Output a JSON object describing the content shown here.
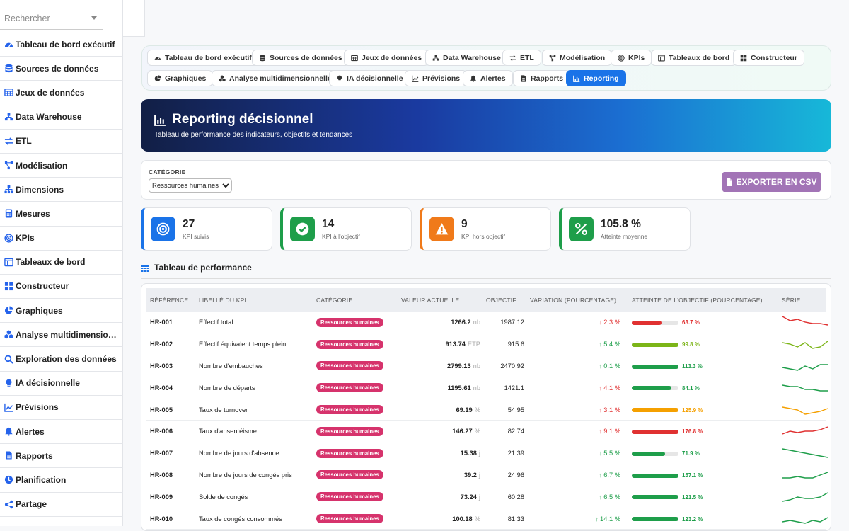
{
  "sidebar": {
    "search_placeholder": "Rechercher",
    "items": [
      {
        "label": "Tableau de bord exécutif",
        "icon": "gauge-icon"
      },
      {
        "label": "Sources de données",
        "icon": "database-icon"
      },
      {
        "label": "Jeux de données",
        "icon": "table-icon"
      },
      {
        "label": "Data Warehouse",
        "icon": "warehouse-icon"
      },
      {
        "label": "ETL",
        "icon": "exchange-icon"
      },
      {
        "label": "Modélisation",
        "icon": "model-icon"
      },
      {
        "label": "Dimensions",
        "icon": "sitemap-icon"
      },
      {
        "label": "Mesures",
        "icon": "calculator-icon"
      },
      {
        "label": "KPIs",
        "icon": "target-icon"
      },
      {
        "label": "Tableaux de bord",
        "icon": "panel-icon"
      },
      {
        "label": "Constructeur",
        "icon": "grid-icon"
      },
      {
        "label": "Graphiques",
        "icon": "pie-icon"
      },
      {
        "label": "Analyse multidimensionnelle",
        "icon": "cubes-icon"
      },
      {
        "label": "Exploration des données",
        "icon": "search-icon"
      },
      {
        "label": "IA décisionnelle",
        "icon": "bulb-icon"
      },
      {
        "label": "Prévisions",
        "icon": "line-chart-icon"
      },
      {
        "label": "Alertes",
        "icon": "bell-icon"
      },
      {
        "label": "Rapports",
        "icon": "file-icon"
      },
      {
        "label": "Planification",
        "icon": "clock-icon"
      },
      {
        "label": "Partage",
        "icon": "share-icon"
      }
    ]
  },
  "tabs": [
    {
      "label": "Tableau de bord exécutif",
      "icon": "gauge-icon"
    },
    {
      "label": "Sources de données",
      "icon": "database-icon"
    },
    {
      "label": "Jeux de données",
      "icon": "table-icon"
    },
    {
      "label": "Data Warehouse",
      "icon": "warehouse-icon"
    },
    {
      "label": "ETL",
      "icon": "exchange-icon"
    },
    {
      "label": "Modélisation",
      "icon": "model-icon"
    },
    {
      "label": "KPIs",
      "icon": "target-icon"
    },
    {
      "label": "Tableaux de bord",
      "icon": "panel-icon"
    },
    {
      "label": "Constructeur",
      "icon": "grid-icon"
    },
    {
      "label": "Graphiques",
      "icon": "pie-icon"
    },
    {
      "label": "Analyse multidimensionnelle",
      "icon": "cubes-icon"
    },
    {
      "label": "IA décisionnelle",
      "icon": "bulb-icon"
    },
    {
      "label": "Prévisions",
      "icon": "line-chart-icon"
    },
    {
      "label": "Alertes",
      "icon": "bell-icon"
    },
    {
      "label": "Rapports",
      "icon": "file-icon"
    },
    {
      "label": "Reporting",
      "icon": "bar-chart-icon",
      "active": true
    }
  ],
  "header": {
    "title": "Reporting décisionnel",
    "subtitle": "Tableau de performance des indicateurs, objectifs et tendances"
  },
  "filter": {
    "label": "CATÉGORIE",
    "selected": "Ressources humaines",
    "export_label": "EXPORTER EN CSV"
  },
  "stats": [
    {
      "value": "27",
      "label": "KPI suivis",
      "color": "#1a73e8",
      "icon": "target-icon"
    },
    {
      "value": "14",
      "label": "KPI à l'objectif",
      "color": "#1e9e4a",
      "icon": "check-circle-icon"
    },
    {
      "value": "9",
      "label": "KPI hors objectif",
      "color": "#f07a1a",
      "icon": "warning-icon"
    },
    {
      "value": "105.8 %",
      "label": "Atteinte moyenne",
      "color": "#1e9e4a",
      "icon": "percent-icon"
    }
  ],
  "table": {
    "title": "Tableau de performance",
    "headers": [
      "RÉFÉRENCE",
      "LIBELLÉ DU KPI",
      "CATÉGORIE",
      "VALEUR ACTUELLE",
      "OBJECTIF",
      "VARIATION (POURCENTAGE)",
      "ATTEINTE DE L'OBJECTIF (POURCENTAGE)",
      "SÉRIE"
    ],
    "rows": [
      {
        "ref": "HR-001",
        "label": "Effectif total",
        "category": "Ressources humaines",
        "value": "1266.2",
        "unit": "nb",
        "target": "1987.12",
        "dir": "down",
        "variation": "2.3 %",
        "var_color": "#e03131",
        "attain": 63.7,
        "attain_text": "63.7 %",
        "attain_color": "#e03131",
        "spark": [
          9,
          6,
          7,
          5,
          4,
          4,
          3
        ],
        "spark_color": "#e03131"
      },
      {
        "ref": "HR-002",
        "label": "Effectif équivalent temps plein",
        "category": "Ressources humaines",
        "value": "913.74",
        "unit": "ETP",
        "target": "915.6",
        "dir": "up",
        "variation": "5.4 %",
        "var_color": "#1e9e4a",
        "attain": 99.8,
        "attain_text": "99.8 %",
        "attain_color": "#7cb518",
        "spark": [
          6,
          5,
          3,
          6,
          2,
          3,
          7
        ],
        "spark_color": "#7cb518"
      },
      {
        "ref": "HR-003",
        "label": "Nombre d'embauches",
        "category": "Ressources humaines",
        "value": "2799.13",
        "unit": "nb",
        "target": "2470.92",
        "dir": "up",
        "variation": "0.1 %",
        "var_color": "#1e9e4a",
        "attain": 113.3,
        "attain_text": "113.3 %",
        "attain_color": "#1e9e4a",
        "spark": [
          4,
          3,
          2,
          5,
          3,
          6,
          6
        ],
        "spark_color": "#1e9e4a"
      },
      {
        "ref": "HR-004",
        "label": "Nombre de départs",
        "category": "Ressources humaines",
        "value": "1195.61",
        "unit": "nb",
        "target": "1421.1",
        "dir": "up",
        "variation": "4.1 %",
        "var_color": "#e03131",
        "attain": 84.1,
        "attain_text": "84.1 %",
        "attain_color": "#1e9e4a",
        "spark": [
          7,
          6,
          6,
          4,
          4,
          3,
          3
        ],
        "spark_color": "#1e9e4a"
      },
      {
        "ref": "HR-005",
        "label": "Taux de turnover",
        "category": "Ressources humaines",
        "value": "69.19",
        "unit": "%",
        "target": "54.95",
        "dir": "up",
        "variation": "3.1 %",
        "var_color": "#e03131",
        "attain": 125.9,
        "attain_text": "125.9 %",
        "attain_color": "#f5a000",
        "spark": [
          7,
          6,
          5,
          2,
          3,
          4,
          6
        ],
        "spark_color": "#f5a000"
      },
      {
        "ref": "HR-006",
        "label": "Taux d'absentéisme",
        "category": "Ressources humaines",
        "value": "146.27",
        "unit": "%",
        "target": "82.74",
        "dir": "up",
        "variation": "9.1 %",
        "var_color": "#e03131",
        "attain": 176.8,
        "attain_text": "176.8 %",
        "attain_color": "#e03131",
        "spark": [
          3,
          5,
          4,
          5,
          5,
          6,
          8
        ],
        "spark_color": "#e03131"
      },
      {
        "ref": "HR-007",
        "label": "Nombre de jours d'absence",
        "category": "Ressources humaines",
        "value": "15.38",
        "unit": "j",
        "target": "21.39",
        "dir": "down",
        "variation": "5.5 %",
        "var_color": "#1e9e4a",
        "attain": 71.9,
        "attain_text": "71.9 %",
        "attain_color": "#1e9e4a",
        "spark": [
          8,
          7,
          6,
          5,
          4,
          3,
          2
        ],
        "spark_color": "#1e9e4a"
      },
      {
        "ref": "HR-008",
        "label": "Nombre de jours de congés pris",
        "category": "Ressources humaines",
        "value": "39.2",
        "unit": "j",
        "target": "24.96",
        "dir": "up",
        "variation": "6.7 %",
        "var_color": "#1e9e4a",
        "attain": 157.1,
        "attain_text": "157.1 %",
        "attain_color": "#1e9e4a",
        "spark": [
          3,
          3,
          4,
          3,
          3,
          5,
          7
        ],
        "spark_color": "#1e9e4a"
      },
      {
        "ref": "HR-009",
        "label": "Solde de congés",
        "category": "Ressources humaines",
        "value": "73.24",
        "unit": "j",
        "target": "60.28",
        "dir": "up",
        "variation": "6.5 %",
        "var_color": "#1e9e4a",
        "attain": 121.5,
        "attain_text": "121.5 %",
        "attain_color": "#1e9e4a",
        "spark": [
          2,
          3,
          5,
          4,
          4,
          5,
          8
        ],
        "spark_color": "#1e9e4a"
      },
      {
        "ref": "HR-010",
        "label": "Taux de congés consommés",
        "category": "Ressources humaines",
        "value": "100.18",
        "unit": "%",
        "target": "81.33",
        "dir": "up",
        "variation": "14.1 %",
        "var_color": "#1e9e4a",
        "attain": 123.2,
        "attain_text": "123.2 %",
        "attain_color": "#1e9e4a",
        "spark": [
          3,
          4,
          3,
          2,
          4,
          3,
          6
        ],
        "spark_color": "#1e9e4a"
      }
    ]
  }
}
